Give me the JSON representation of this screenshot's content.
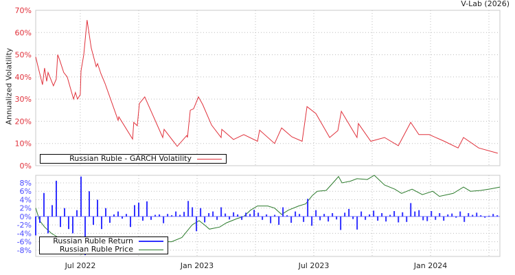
{
  "credit": "V-Lab (2026)",
  "colors": {
    "volatility": "#e0303a",
    "returns": "#3030ff",
    "price": "#2a7a2a",
    "vol_tick": "#e0303a",
    "ret_tick": "#4a4aff",
    "grid": "#bbbbbb",
    "frame": "#c8c8c8"
  },
  "chart_data": [
    {
      "type": "line",
      "title": "",
      "ylabel": "Annualized Volatility",
      "xlabel": "",
      "x_unit": "decimal year",
      "ylim": [
        0,
        70
      ],
      "xlim": [
        2022.309,
        2024.297
      ],
      "y_ticks": [
        "0%",
        "10%",
        "20%",
        "30%",
        "40%",
        "50%",
        "60%",
        "70%"
      ],
      "grid": true,
      "legend": {
        "placement": "bottom-left",
        "entries": [
          "Russian Ruble - GARCH Volatility"
        ]
      },
      "series": [
        {
          "name": "Russian Ruble - GARCH Volatility",
          "x": [
            2022.309,
            2022.318,
            2022.338,
            2022.347,
            2022.356,
            2022.362,
            2022.385,
            2022.397,
            2022.403,
            2022.412,
            2022.429,
            2022.444,
            2022.471,
            2022.479,
            2022.488,
            2022.5,
            2022.503,
            2022.515,
            2022.529,
            2022.547,
            2022.568,
            2022.574,
            2022.588,
            2022.606,
            2022.662,
            2022.665,
            2022.724,
            2022.729,
            2022.744,
            2022.753,
            2022.776,
            2022.853,
            2022.859,
            2022.915,
            2022.956,
            2022.959,
            2022.971,
            2022.985,
            2023.006,
            2023.024,
            2023.062,
            2023.103,
            2023.106,
            2023.156,
            2023.2,
            2023.259,
            2023.268,
            2023.332,
            2023.362,
            2023.406,
            2023.45,
            2023.471,
            2023.509,
            2023.568,
            2023.603,
            2023.618,
            2023.685,
            2023.691,
            2023.744,
            2023.803,
            2023.862,
            2023.915,
            2023.95,
            2023.994,
            2024.059,
            2024.118,
            2024.141,
            2024.206,
            2024.288
          ],
          "y": [
            49,
            45,
            36.5,
            44,
            38,
            42,
            36,
            39,
            50,
            47.5,
            42,
            40,
            30,
            33,
            30,
            32,
            42.7,
            50,
            65.6,
            53,
            44.6,
            46,
            41.5,
            37,
            20.4,
            22,
            12,
            19.5,
            18,
            28,
            31,
            12.7,
            16.4,
            8.7,
            13.6,
            12.7,
            25,
            25.6,
            31,
            27.6,
            18.3,
            12.7,
            16.4,
            11.8,
            14,
            11,
            16,
            10,
            17,
            13,
            11,
            26.6,
            23.5,
            12.7,
            15.8,
            24.5,
            12.7,
            19,
            11,
            12.7,
            9,
            19.5,
            14,
            14,
            11,
            8,
            12.7,
            8,
            5.6
          ]
        }
      ]
    },
    {
      "type": "bar",
      "title": "",
      "ylabel": "",
      "x_unit": "decimal year",
      "ylim": [
        -9.5,
        9.8
      ],
      "xlim": [
        2022.309,
        2024.297
      ],
      "y_ticks": [
        "-8%",
        "-6%",
        "-4%",
        "-2%",
        "0%",
        "2%",
        "4%",
        "6%",
        "8%"
      ],
      "x_ticks": [
        "Jul 2022",
        "Jan 2023",
        "Jul 2023",
        "Jan 2024"
      ],
      "x_tick_values": [
        2022.5,
        2023.0,
        2023.5,
        2024.0
      ],
      "grid": true,
      "legend": {
        "placement": "bottom-left",
        "entries": [
          "Russian Ruble Return",
          "Russian Ruble Price"
        ]
      },
      "series": [
        {
          "name": "Russian Ruble Return",
          "type": "bar",
          "x_start": 2022.309,
          "x_step": 0.01765,
          "values": [
            -4.5,
            -1.5,
            5.6,
            -4,
            2.7,
            8.5,
            -2.5,
            2,
            -3,
            -4,
            1.5,
            9.5,
            -9.2,
            6,
            -2,
            4,
            -3,
            2,
            -1.5,
            0.5,
            1.2,
            -0.5,
            0.6,
            -2.5,
            2.7,
            3.3,
            -1,
            3.6,
            -0.8,
            0.4,
            0.5,
            -1.6,
            0.6,
            0.3,
            1.2,
            0.4,
            1.1,
            3.7,
            2.2,
            -3.5,
            2,
            -1.4,
            0.8,
            1.2,
            -0.8,
            2.2,
            0.7,
            -0.7,
            1,
            0.5,
            -0.8,
            0.9,
            0.6,
            1.6,
            0.9,
            -0.8,
            0.5,
            -1.6,
            0.4,
            -2,
            2.2,
            0.3,
            -1.5,
            1.2,
            0.6,
            -1.3,
            4.2,
            -2.2,
            1.5,
            -0.9,
            0.6,
            -1.2,
            0.8,
            -0.7,
            -3.2,
            0.9,
            1.8,
            -0.6,
            -3.1,
            1.2,
            -0.8,
            0.5,
            1.4,
            -1.0,
            0.8,
            -1.2,
            0.4,
            1.3,
            -1.4,
            1.0,
            -1.3,
            3.2,
            1.2,
            1.5,
            -0.9,
            -1.1,
            1.3,
            -0.8,
            0.8,
            -1.0,
            0.5,
            0.7,
            -0.3,
            1.2,
            -1.3,
            0.8,
            0.4,
            0.9,
            0.3,
            -0.3,
            0.2,
            0.6,
            0.3
          ]
        },
        {
          "name": "Russian Ruble Price",
          "type": "line",
          "note": "plotted on return axis scale",
          "x": [
            2022.309,
            2022.326,
            2022.347,
            2022.376,
            2022.406,
            2022.435,
            2022.479,
            2022.503,
            2022.538,
            2022.597,
            2022.685,
            2022.744,
            2022.832,
            2022.891,
            2022.935,
            2022.979,
            2023.009,
            2023.032,
            2023.053,
            2023.097,
            2023.126,
            2023.171,
            2023.2,
            2023.229,
            2023.259,
            2023.303,
            2023.332,
            2023.362,
            2023.391,
            2023.435,
            2023.465,
            2023.494,
            2023.515,
            2023.553,
            2023.582,
            2023.606,
            2023.621,
            2023.656,
            2023.685,
            2023.729,
            2023.759,
            2023.803,
            2023.847,
            2023.876,
            2023.921,
            2023.965,
            2024.009,
            2024.038,
            2024.097,
            2024.141,
            2024.171,
            2024.215,
            2024.259,
            2024.297
          ],
          "y": [
            2,
            -1,
            -2.5,
            -4,
            -5,
            -6,
            -7.5,
            -9,
            -8.5,
            -7.5,
            -7,
            -6.5,
            -6,
            -6,
            -5,
            -2,
            -1,
            -2,
            -3,
            -2.5,
            -1.5,
            -0.5,
            0,
            1.5,
            2.5,
            2.5,
            2,
            0.5,
            1.5,
            2.5,
            3,
            5,
            6,
            6.2,
            8,
            9.5,
            8,
            8.4,
            9,
            8.8,
            9.8,
            7.5,
            6.5,
            5.5,
            6.5,
            5.2,
            6,
            4.8,
            5.5,
            7,
            6,
            6.2,
            6.6,
            7
          ]
        }
      ]
    }
  ]
}
